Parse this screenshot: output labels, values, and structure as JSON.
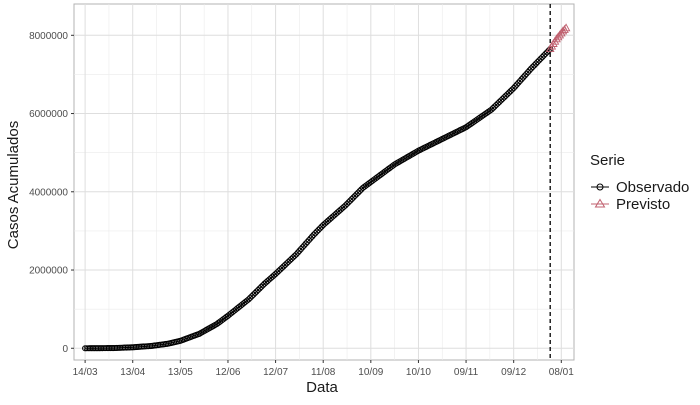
{
  "chart_data": {
    "type": "line",
    "xlabel": "Data",
    "ylabel": "Casos Acumulados",
    "x_tick_labels": [
      "14/03",
      "13/04",
      "13/05",
      "12/06",
      "12/07",
      "11/08",
      "10/09",
      "10/10",
      "09/11",
      "09/12",
      "08/01"
    ],
    "y_tick_labels": [
      "0",
      "2000000",
      "4000000",
      "6000000",
      "8000000"
    ],
    "y_ticks": [
      0,
      2000000,
      4000000,
      6000000,
      8000000
    ],
    "ylim": [
      -300000,
      8800000
    ],
    "x_range": [
      "2020-03-07",
      "2021-01-16"
    ],
    "x_ticks": [
      "2020-03-14",
      "2020-04-13",
      "2020-05-13",
      "2020-06-12",
      "2020-07-12",
      "2020-08-11",
      "2020-09-10",
      "2020-10-10",
      "2020-11-09",
      "2020-12-09",
      "2021-01-08"
    ],
    "vline_date": "2021-01-01",
    "grid": true,
    "legend": {
      "title": "Serie",
      "placement": "right"
    },
    "series": [
      {
        "name": "Observado",
        "marker": "circle",
        "color": "#000000",
        "points": [
          [
            "2020-03-14",
            0
          ],
          [
            "2020-04-01",
            5000
          ],
          [
            "2020-04-13",
            25000
          ],
          [
            "2020-04-25",
            60000
          ],
          [
            "2020-05-05",
            115000
          ],
          [
            "2020-05-13",
            190000
          ],
          [
            "2020-05-25",
            370000
          ],
          [
            "2020-06-05",
            620000
          ],
          [
            "2020-06-12",
            830000
          ],
          [
            "2020-06-25",
            1250000
          ],
          [
            "2020-07-05",
            1650000
          ],
          [
            "2020-07-12",
            1900000
          ],
          [
            "2020-07-25",
            2400000
          ],
          [
            "2020-08-05",
            2900000
          ],
          [
            "2020-08-11",
            3150000
          ],
          [
            "2020-08-25",
            3650000
          ],
          [
            "2020-09-05",
            4100000
          ],
          [
            "2020-09-10",
            4250000
          ],
          [
            "2020-09-25",
            4700000
          ],
          [
            "2020-10-10",
            5050000
          ],
          [
            "2020-10-25",
            5350000
          ],
          [
            "2020-11-09",
            5650000
          ],
          [
            "2020-11-25",
            6100000
          ],
          [
            "2020-12-09",
            6650000
          ],
          [
            "2020-12-20",
            7150000
          ],
          [
            "2021-01-01",
            7650000
          ]
        ]
      },
      {
        "name": "Previsto",
        "marker": "triangle",
        "color": "#c0606f",
        "points": [
          [
            "2021-01-01",
            7650000
          ],
          [
            "2021-01-03",
            7780000
          ],
          [
            "2021-01-05",
            7900000
          ],
          [
            "2021-01-07",
            8000000
          ],
          [
            "2021-01-09",
            8100000
          ],
          [
            "2021-01-11",
            8180000
          ]
        ]
      }
    ]
  }
}
